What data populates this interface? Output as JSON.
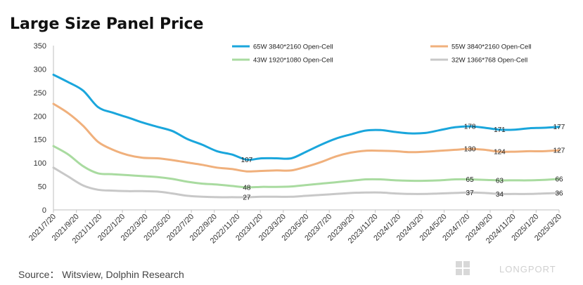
{
  "chart_data": {
    "type": "line",
    "title": "Large Size Panel Price",
    "source": "Source： Witsview, Dolphin Research",
    "watermark": "LONGPORT",
    "ylim": [
      0,
      350
    ],
    "yticks": [
      0,
      50,
      100,
      150,
      200,
      250,
      300,
      350
    ],
    "grid": false,
    "legend_placement": "top",
    "x_labels": [
      "2021/7/20",
      "2021/9/20",
      "2021/11/20",
      "2022/1/20",
      "2022/3/20",
      "2022/5/20",
      "2022/7/20",
      "2022/9/20",
      "2022/11/20",
      "2023/1/20",
      "2023/3/20",
      "2023/5/20",
      "2023/7/20",
      "2023/9/20",
      "2023/11/20",
      "2024/1/20",
      "2024/3/20",
      "2024/5/20",
      "2024/7/20",
      "2024/9/20",
      "2024/11/20",
      "2025/1/20",
      "2025/3/20"
    ],
    "series": [
      {
        "name": "65W 3840*2160 Open-Cell",
        "color": "#1aa6dc",
        "values": [
          288,
          272,
          254,
          219,
          207,
          197,
          186,
          177,
          168,
          151,
          139,
          125,
          118,
          107,
          110,
          110,
          110,
          124,
          139,
          152,
          161,
          169,
          170,
          166,
          163,
          164,
          170,
          176,
          178,
          175,
          171,
          171,
          174,
          175,
          177
        ],
        "labels": [
          {
            "i": 13,
            "text": "107"
          },
          {
            "i": 28,
            "text": "178"
          },
          {
            "i": 30,
            "text": "171"
          },
          {
            "i": 34,
            "text": "177"
          }
        ]
      },
      {
        "name": "55W 3840*2160 Open-Cell",
        "color": "#f0b07c",
        "values": [
          226,
          206,
          179,
          145,
          128,
          117,
          111,
          110,
          106,
          101,
          96,
          90,
          87,
          82,
          83,
          84,
          84,
          92,
          102,
          114,
          122,
          126,
          126,
          125,
          123,
          124,
          126,
          128,
          130,
          128,
          124,
          124,
          125,
          125,
          127
        ],
        "labels": [
          {
            "i": 28,
            "text": "130"
          },
          {
            "i": 30,
            "text": "124"
          },
          {
            "i": 34,
            "text": "127"
          }
        ]
      },
      {
        "name": "43W 1920*1080 Open-Cell",
        "color": "#a9dba0",
        "values": [
          136,
          118,
          93,
          78,
          76,
          74,
          72,
          70,
          66,
          60,
          56,
          54,
          51,
          48,
          49,
          49,
          50,
          53,
          56,
          59,
          62,
          65,
          65,
          63,
          62,
          62,
          63,
          65,
          65,
          64,
          63,
          63,
          63,
          64,
          66
        ],
        "labels": [
          {
            "i": 13,
            "text": "48"
          },
          {
            "i": 28,
            "text": "65"
          },
          {
            "i": 30,
            "text": "63"
          },
          {
            "i": 34,
            "text": "66"
          }
        ]
      },
      {
        "name": "32W 1366*768 Open-Cell",
        "color": "#c8c8c8",
        "values": [
          90,
          71,
          52,
          43,
          41,
          40,
          40,
          39,
          35,
          30,
          28,
          27,
          27,
          27,
          28,
          28,
          28,
          30,
          32,
          34,
          36,
          37,
          37,
          35,
          34,
          34,
          35,
          36,
          37,
          36,
          34,
          34,
          34,
          35,
          36
        ],
        "labels": [
          {
            "i": 13,
            "text": "27"
          },
          {
            "i": 28,
            "text": "37"
          },
          {
            "i": 30,
            "text": "34"
          },
          {
            "i": 34,
            "text": "36"
          }
        ]
      }
    ]
  }
}
